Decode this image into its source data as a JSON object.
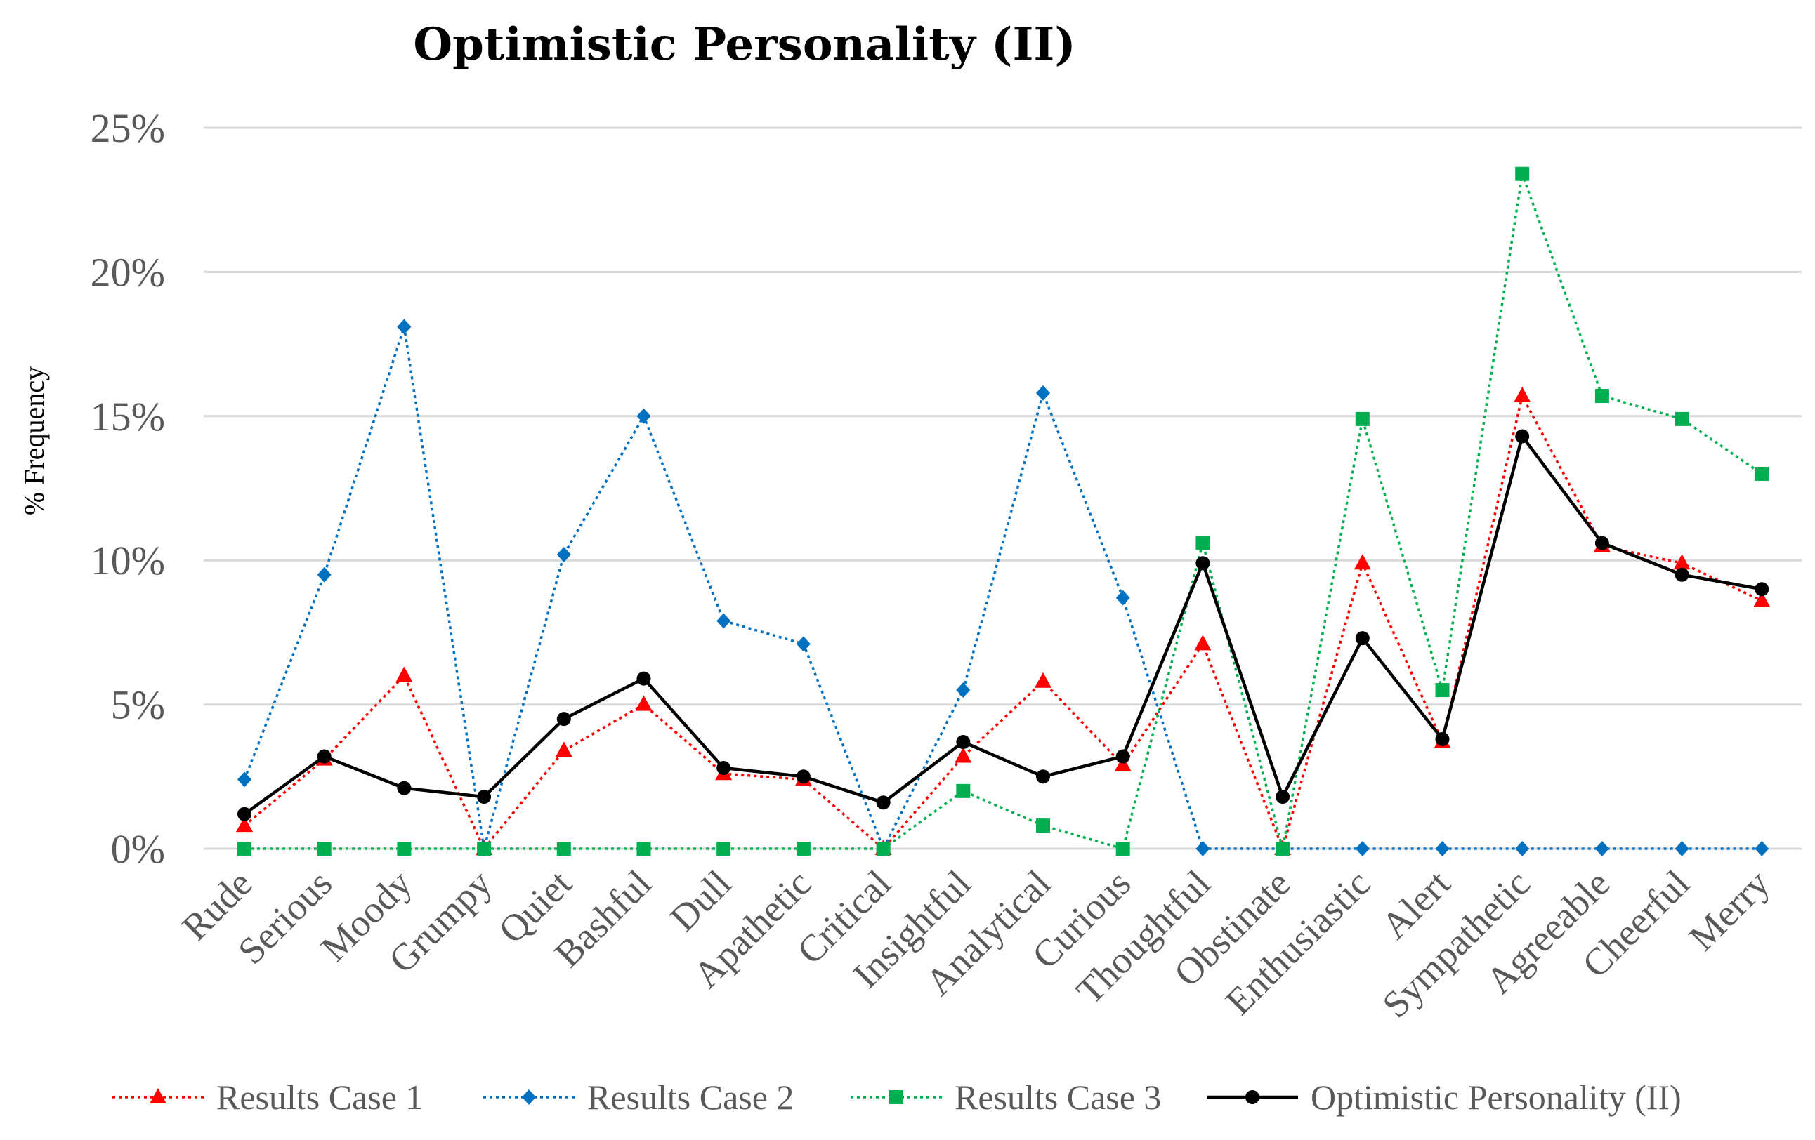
{
  "chart_data": {
    "type": "line",
    "title": "Optimistic Personality (II)",
    "xlabel": "",
    "ylabel": "% Frequency",
    "ylim": [
      0,
      25
    ],
    "yticks": [
      "0%",
      "5%",
      "10%",
      "15%",
      "20%",
      "25%"
    ],
    "grid": true,
    "legend_position": "bottom",
    "categories": [
      "Rude",
      "Serious",
      "Moody",
      "Grumpy",
      "Quiet",
      "Bashful",
      "Dull",
      "Apathetic",
      "Critical",
      "Insightful",
      "Analytical",
      "Curious",
      "Thoughtful",
      "Obstinate",
      "Enthusiastic",
      "Alert",
      "Sympathetic",
      "Agreeable",
      "Cheerful",
      "Merry"
    ],
    "series": [
      {
        "name": "Results Case 1",
        "color": "#ff0000",
        "line_style": "dotted",
        "marker": "triangle",
        "values": [
          0.8,
          3.1,
          6.0,
          0.0,
          3.4,
          5.0,
          2.6,
          2.4,
          0.0,
          3.2,
          5.8,
          2.9,
          7.1,
          0.0,
          9.9,
          3.7,
          15.7,
          10.5,
          9.9,
          8.6
        ]
      },
      {
        "name": "Results Case 2",
        "color": "#0070c0",
        "line_style": "dotted",
        "marker": "diamond",
        "values": [
          2.4,
          9.5,
          18.1,
          0.0,
          10.2,
          15.0,
          7.9,
          7.1,
          0.0,
          5.5,
          15.8,
          8.7,
          0.0,
          0.0,
          0.0,
          0.0,
          0.0,
          0.0,
          0.0,
          0.0
        ]
      },
      {
        "name": "Results Case 3",
        "color": "#00b050",
        "line_style": "dotted",
        "marker": "square",
        "values": [
          0.0,
          0.0,
          0.0,
          0.0,
          0.0,
          0.0,
          0.0,
          0.0,
          0.0,
          2.0,
          0.8,
          0.0,
          10.6,
          0.0,
          14.9,
          5.5,
          23.4,
          15.7,
          14.9,
          13.0
        ]
      },
      {
        "name": "Optimistic Personality (II)",
        "color": "#000000",
        "line_style": "solid",
        "marker": "circle",
        "values": [
          1.2,
          3.2,
          2.1,
          1.8,
          4.5,
          5.9,
          2.8,
          2.5,
          1.6,
          3.7,
          2.5,
          3.2,
          9.9,
          1.8,
          7.3,
          3.8,
          14.3,
          10.6,
          9.5,
          9.0
        ]
      }
    ]
  }
}
